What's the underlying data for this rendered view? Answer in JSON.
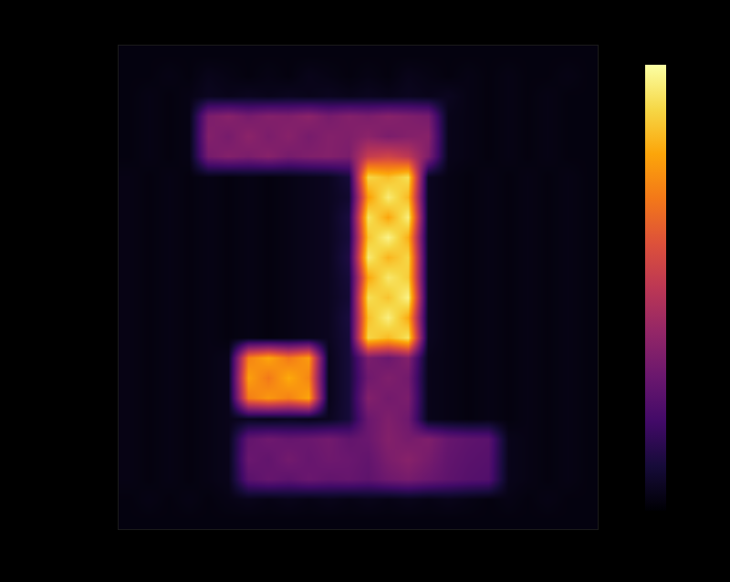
{
  "chart_data": {
    "type": "heatmap",
    "tick_labels": false,
    "color": "inferno",
    "xlim": [
      -0.5,
      23.5
    ],
    "ylim": [
      23.5,
      -0.5
    ],
    "color_range": [
      0,
      1
    ],
    "cells": [
      [
        0.02,
        0.02,
        0.02,
        0.02,
        0.02,
        0.02,
        0.02,
        0.02,
        0.02,
        0.02,
        0.02,
        0.02,
        0.02,
        0.02,
        0.02,
        0.02,
        0.02,
        0.02,
        0.02,
        0.02,
        0.02,
        0.02,
        0.02,
        0.02
      ],
      [
        0.02,
        0.02,
        0.03,
        0.02,
        0.04,
        0.03,
        0.02,
        0.03,
        0.02,
        0.04,
        0.03,
        0.02,
        0.03,
        0.02,
        0.04,
        0.03,
        0.02,
        0.03,
        0.02,
        0.03,
        0.02,
        0.02,
        0.03,
        0.02
      ],
      [
        0.02,
        0.03,
        0.02,
        0.03,
        0.05,
        0.04,
        0.05,
        0.04,
        0.05,
        0.04,
        0.05,
        0.04,
        0.05,
        0.04,
        0.05,
        0.04,
        0.05,
        0.03,
        0.02,
        0.03,
        0.02,
        0.03,
        0.02,
        0.02
      ],
      [
        0.02,
        0.03,
        0.02,
        0.03,
        0.34,
        0.37,
        0.33,
        0.36,
        0.35,
        0.38,
        0.33,
        0.36,
        0.34,
        0.37,
        0.35,
        0.33,
        0.04,
        0.03,
        0.02,
        0.03,
        0.02,
        0.03,
        0.02,
        0.02
      ],
      [
        0.02,
        0.03,
        0.02,
        0.03,
        0.36,
        0.33,
        0.38,
        0.34,
        0.37,
        0.33,
        0.36,
        0.35,
        0.38,
        0.34,
        0.36,
        0.37,
        0.04,
        0.03,
        0.02,
        0.03,
        0.02,
        0.03,
        0.02,
        0.02
      ],
      [
        0.02,
        0.03,
        0.02,
        0.03,
        0.33,
        0.36,
        0.34,
        0.37,
        0.33,
        0.35,
        0.36,
        0.34,
        0.52,
        0.55,
        0.5,
        0.35,
        0.04,
        0.03,
        0.02,
        0.03,
        0.02,
        0.03,
        0.02,
        0.02
      ],
      [
        0.03,
        0.02,
        0.03,
        0.02,
        0.03,
        0.02,
        0.03,
        0.02,
        0.03,
        0.04,
        0.05,
        0.1,
        0.9,
        0.85,
        0.92,
        0.05,
        0.03,
        0.02,
        0.03,
        0.02,
        0.03,
        0.02,
        0.03,
        0.02
      ],
      [
        0.03,
        0.02,
        0.03,
        0.02,
        0.03,
        0.02,
        0.03,
        0.02,
        0.03,
        0.04,
        0.05,
        0.08,
        0.78,
        0.95,
        0.84,
        0.05,
        0.03,
        0.02,
        0.03,
        0.02,
        0.03,
        0.02,
        0.03,
        0.02
      ],
      [
        0.03,
        0.02,
        0.03,
        0.02,
        0.03,
        0.02,
        0.03,
        0.02,
        0.03,
        0.04,
        0.05,
        0.11,
        0.93,
        0.8,
        0.96,
        0.05,
        0.03,
        0.02,
        0.03,
        0.02,
        0.03,
        0.02,
        0.03,
        0.02
      ],
      [
        0.03,
        0.02,
        0.03,
        0.02,
        0.03,
        0.02,
        0.03,
        0.02,
        0.03,
        0.04,
        0.05,
        0.1,
        0.86,
        0.97,
        0.82,
        0.05,
        0.03,
        0.02,
        0.03,
        0.02,
        0.03,
        0.02,
        0.03,
        0.02
      ],
      [
        0.03,
        0.02,
        0.03,
        0.02,
        0.03,
        0.02,
        0.03,
        0.02,
        0.03,
        0.04,
        0.05,
        0.12,
        0.95,
        0.83,
        0.9,
        0.05,
        0.03,
        0.02,
        0.03,
        0.02,
        0.03,
        0.02,
        0.03,
        0.02
      ],
      [
        0.03,
        0.02,
        0.03,
        0.02,
        0.03,
        0.02,
        0.03,
        0.02,
        0.03,
        0.04,
        0.05,
        0.1,
        0.8,
        0.94,
        0.88,
        0.05,
        0.03,
        0.02,
        0.03,
        0.02,
        0.03,
        0.02,
        0.03,
        0.02
      ],
      [
        0.03,
        0.02,
        0.03,
        0.02,
        0.03,
        0.02,
        0.03,
        0.02,
        0.03,
        0.04,
        0.05,
        0.09,
        0.92,
        0.86,
        0.97,
        0.05,
        0.03,
        0.02,
        0.03,
        0.02,
        0.03,
        0.02,
        0.03,
        0.02
      ],
      [
        0.03,
        0.02,
        0.03,
        0.02,
        0.03,
        0.02,
        0.03,
        0.02,
        0.03,
        0.04,
        0.05,
        0.11,
        0.85,
        0.96,
        0.81,
        0.05,
        0.03,
        0.02,
        0.03,
        0.02,
        0.03,
        0.02,
        0.03,
        0.02
      ],
      [
        0.03,
        0.02,
        0.03,
        0.02,
        0.03,
        0.02,
        0.03,
        0.02,
        0.03,
        0.04,
        0.05,
        0.1,
        0.9,
        0.84,
        0.93,
        0.05,
        0.03,
        0.02,
        0.03,
        0.02,
        0.03,
        0.02,
        0.03,
        0.02
      ],
      [
        0.03,
        0.02,
        0.03,
        0.02,
        0.03,
        0.04,
        0.72,
        0.8,
        0.7,
        0.78,
        0.04,
        0.1,
        0.34,
        0.3,
        0.36,
        0.04,
        0.03,
        0.02,
        0.03,
        0.02,
        0.03,
        0.02,
        0.03,
        0.02
      ],
      [
        0.03,
        0.02,
        0.03,
        0.02,
        0.03,
        0.04,
        0.79,
        0.7,
        0.81,
        0.73,
        0.04,
        0.1,
        0.31,
        0.35,
        0.32,
        0.04,
        0.03,
        0.02,
        0.03,
        0.02,
        0.03,
        0.02,
        0.03,
        0.02
      ],
      [
        0.03,
        0.02,
        0.03,
        0.02,
        0.03,
        0.04,
        0.71,
        0.77,
        0.72,
        0.8,
        0.04,
        0.1,
        0.36,
        0.32,
        0.34,
        0.04,
        0.03,
        0.02,
        0.03,
        0.02,
        0.03,
        0.02,
        0.03,
        0.02
      ],
      [
        0.03,
        0.02,
        0.03,
        0.02,
        0.03,
        0.04,
        0.05,
        0.04,
        0.05,
        0.04,
        0.05,
        0.1,
        0.3,
        0.35,
        0.31,
        0.04,
        0.03,
        0.02,
        0.03,
        0.02,
        0.03,
        0.02,
        0.03,
        0.02
      ],
      [
        0.03,
        0.02,
        0.03,
        0.02,
        0.03,
        0.04,
        0.28,
        0.31,
        0.29,
        0.3,
        0.32,
        0.28,
        0.3,
        0.36,
        0.33,
        0.35,
        0.29,
        0.27,
        0.26,
        0.04,
        0.03,
        0.02,
        0.03,
        0.02
      ],
      [
        0.03,
        0.02,
        0.03,
        0.02,
        0.03,
        0.04,
        0.3,
        0.28,
        0.32,
        0.29,
        0.31,
        0.3,
        0.28,
        0.34,
        0.37,
        0.33,
        0.28,
        0.26,
        0.25,
        0.04,
        0.03,
        0.02,
        0.03,
        0.02
      ],
      [
        0.03,
        0.02,
        0.03,
        0.02,
        0.03,
        0.04,
        0.26,
        0.29,
        0.27,
        0.3,
        0.28,
        0.29,
        0.27,
        0.31,
        0.33,
        0.3,
        0.27,
        0.25,
        0.24,
        0.04,
        0.03,
        0.02,
        0.03,
        0.02
      ],
      [
        0.02,
        0.03,
        0.02,
        0.03,
        0.02,
        0.03,
        0.04,
        0.03,
        0.04,
        0.03,
        0.04,
        0.03,
        0.04,
        0.03,
        0.04,
        0.03,
        0.04,
        0.03,
        0.02,
        0.03,
        0.02,
        0.03,
        0.02,
        0.02
      ],
      [
        0.02,
        0.02,
        0.02,
        0.02,
        0.02,
        0.02,
        0.02,
        0.02,
        0.02,
        0.02,
        0.02,
        0.02,
        0.02,
        0.02,
        0.02,
        0.02,
        0.02,
        0.02,
        0.02,
        0.02,
        0.02,
        0.02,
        0.02,
        0.02
      ]
    ]
  }
}
